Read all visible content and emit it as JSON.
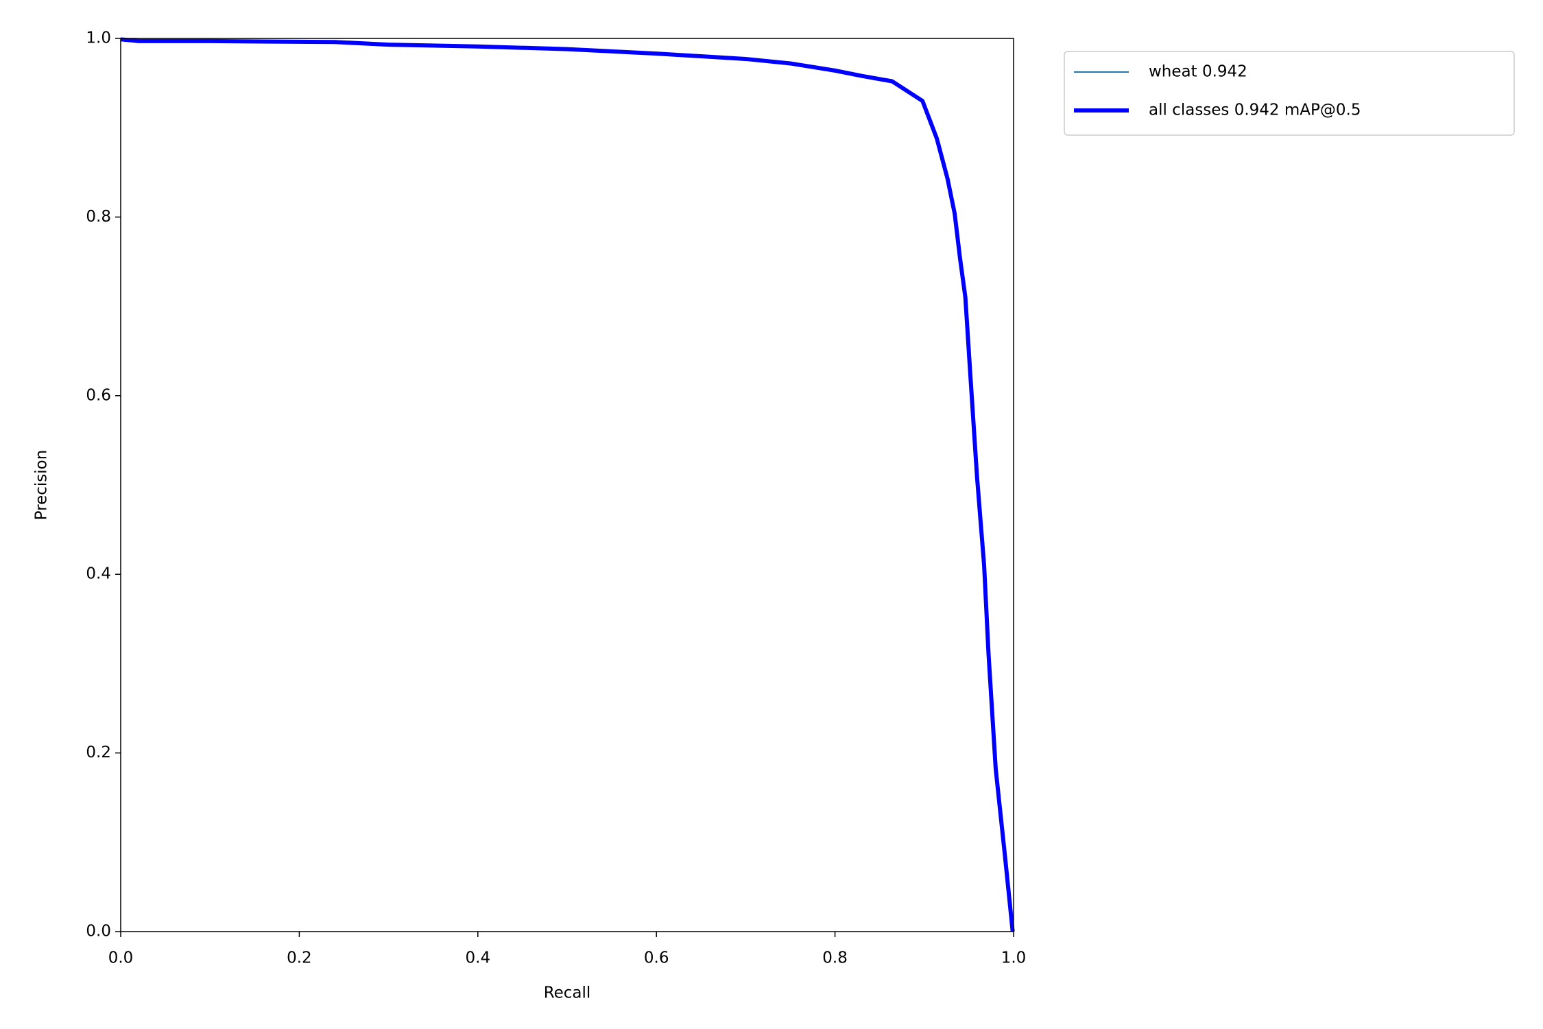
{
  "chart_data": {
    "type": "line",
    "xlabel": "Recall",
    "ylabel": "Precision",
    "x": [
      0,
      0.02,
      0.1,
      0.24,
      0.3,
      0.4,
      0.5,
      0.6,
      0.7,
      0.75,
      0.8,
      0.83,
      0.864,
      0.898,
      0.914,
      0.926,
      0.934,
      0.94,
      0.946,
      0.951,
      0.959,
      0.967,
      0.972,
      0.98,
      0.99,
      0.999
    ],
    "series": [
      {
        "name": "wheat 0.942",
        "color": "#1f77b4",
        "width": 2,
        "values": [
          0.999,
          0.997,
          0.997,
          0.996,
          0.993,
          0.991,
          0.988,
          0.983,
          0.977,
          0.972,
          0.964,
          0.958,
          0.952,
          0.93,
          0.888,
          0.843,
          0.804,
          0.754,
          0.71,
          0.632,
          0.51,
          0.41,
          0.31,
          0.182,
          0.088,
          0
        ]
      },
      {
        "name": "all classes 0.942 mAP@0.5",
        "color": "#0000ff",
        "width": 6,
        "values": [
          0.999,
          0.997,
          0.997,
          0.996,
          0.993,
          0.991,
          0.988,
          0.983,
          0.977,
          0.972,
          0.964,
          0.958,
          0.952,
          0.93,
          0.888,
          0.843,
          0.804,
          0.754,
          0.71,
          0.632,
          0.51,
          0.41,
          0.31,
          0.182,
          0.088,
          0
        ]
      }
    ],
    "xlim": [
      0,
      1
    ],
    "ylim": [
      0,
      1
    ],
    "xticks": [
      {
        "value": 0,
        "label": "0.0"
      },
      0.2,
      0.4,
      0.6,
      0.8,
      {
        "value": 1,
        "label": "1.0"
      }
    ],
    "yticks": [
      {
        "value": 0,
        "label": "0.0"
      },
      0.2,
      0.4,
      0.6,
      0.8,
      {
        "value": 1,
        "label": "1.0"
      }
    ],
    "grid": false,
    "legend": "outside upper right"
  }
}
